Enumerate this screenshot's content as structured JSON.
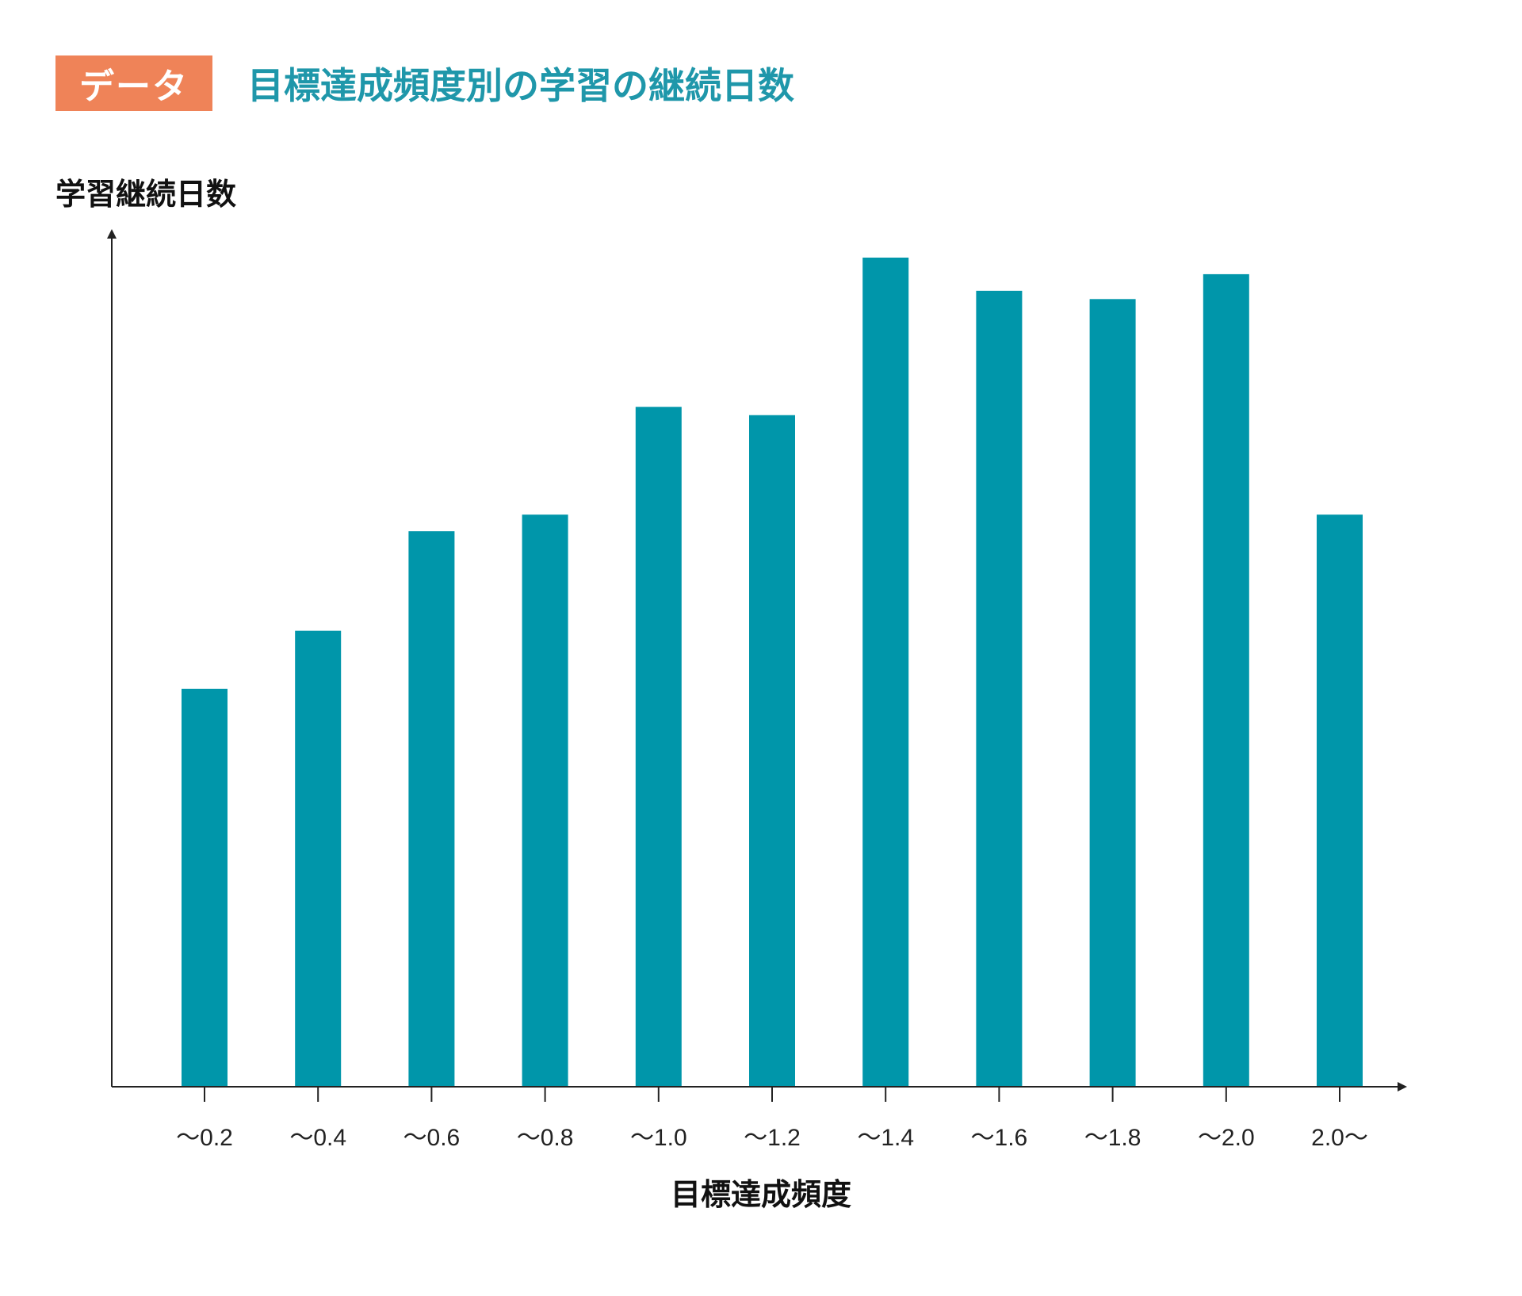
{
  "header": {
    "badge": "データ",
    "title": "目標達成頻度別の学習の継続日数"
  },
  "colors": {
    "badge": "#EF8358",
    "title": "#1F97AA",
    "bar": "#0096AA",
    "axis": "#222222"
  },
  "chart_data": {
    "type": "bar",
    "title": "目標達成頻度別の学習の継続日数",
    "xlabel": "目標達成頻度",
    "ylabel": "学習継続日数",
    "categories": [
      "〜0.2",
      "〜0.4",
      "〜0.6",
      "〜0.8",
      "〜1.0",
      "〜1.2",
      "〜1.4",
      "〜1.6",
      "〜1.8",
      "〜2.0",
      "2.0〜"
    ],
    "values": [
      48,
      55,
      67,
      69,
      82,
      81,
      100,
      96,
      95,
      98,
      69
    ],
    "ylim": [
      0,
      104
    ],
    "grid": false,
    "y_tick_labels_shown": false
  }
}
